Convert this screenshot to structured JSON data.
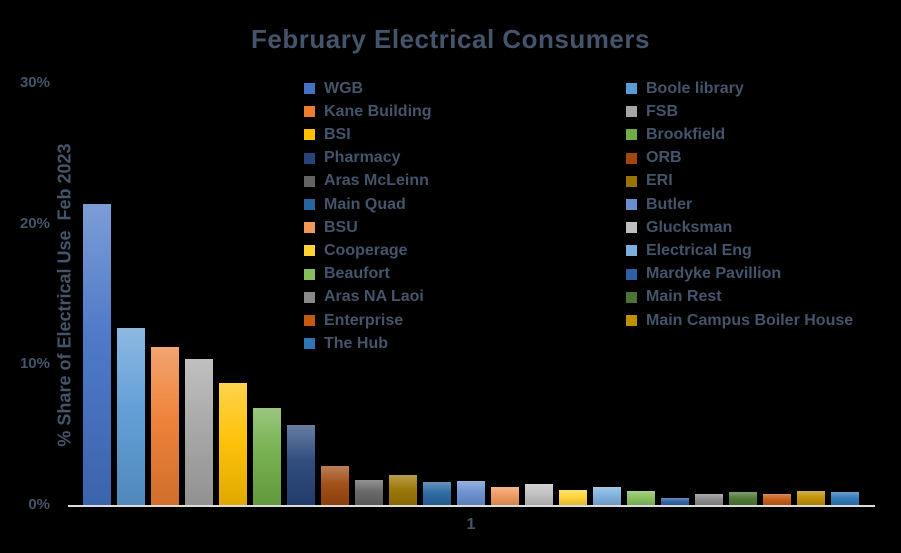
{
  "title": "February Electrical Consumers",
  "colors": {
    "background": "#000000",
    "text": "#44546A",
    "axis_line": "#DCDCDC"
  },
  "chart_data": {
    "type": "bar",
    "title": "February Electrical Consumers",
    "xlabel": "1",
    "ylabel": "% Share of Electrical Use  Feb 2023",
    "ylim": [
      0,
      30
    ],
    "grid": false,
    "legend_position": "top-center-two-columns",
    "yticks": [
      {
        "label": "0%",
        "value": 0
      },
      {
        "label": "10%",
        "value": 10
      },
      {
        "label": "20%",
        "value": 20
      },
      {
        "label": "30%",
        "value": 30
      }
    ],
    "categories": [
      "1"
    ],
    "series": [
      {
        "name": "WGB",
        "value": 21.4,
        "color": "#4472C4"
      },
      {
        "name": "Boole library",
        "value": 12.6,
        "color": "#5B9BD5"
      },
      {
        "name": "Kane Building",
        "value": 11.2,
        "color": "#ED7D31"
      },
      {
        "name": "FSB",
        "value": 10.4,
        "color": "#A5A5A5"
      },
      {
        "name": "BSI",
        "value": 8.7,
        "color": "#FFC000"
      },
      {
        "name": "Brookfield",
        "value": 6.9,
        "color": "#70AD47"
      },
      {
        "name": "Pharmacy",
        "value": 5.7,
        "color": "#264478"
      },
      {
        "name": "ORB",
        "value": 2.8,
        "color": "#9E480E"
      },
      {
        "name": "Aras McLeinn",
        "value": 1.8,
        "color": "#636363"
      },
      {
        "name": "ERI",
        "value": 2.1,
        "color": "#997300"
      },
      {
        "name": "Main Quad",
        "value": 1.6,
        "color": "#2566A0"
      },
      {
        "name": "Butler",
        "value": 1.7,
        "color": "#698ED0"
      },
      {
        "name": "BSU",
        "value": 1.3,
        "color": "#F0975A"
      },
      {
        "name": "Glucksman",
        "value": 1.5,
        "color": "#BFBFBF"
      },
      {
        "name": "Cooperage",
        "value": 1.1,
        "color": "#FFD334"
      },
      {
        "name": "Electrical Eng",
        "value": 1.3,
        "color": "#7CAFDD"
      },
      {
        "name": "Beaufort",
        "value": 1.0,
        "color": "#85BE5A"
      },
      {
        "name": "Mardyke Pavillion",
        "value": 0.5,
        "color": "#2E5FA3"
      },
      {
        "name": "Aras NA Laoi",
        "value": 0.8,
        "color": "#898989"
      },
      {
        "name": "Main Rest",
        "value": 0.9,
        "color": "#4C7433"
      },
      {
        "name": "Enterprise",
        "value": 0.8,
        "color": "#C55A11"
      },
      {
        "name": "Main Campus Boiler House",
        "value": 1.0,
        "color": "#BF9000"
      },
      {
        "name": "The Hub",
        "value": 0.9,
        "color": "#2E75B6"
      }
    ]
  }
}
